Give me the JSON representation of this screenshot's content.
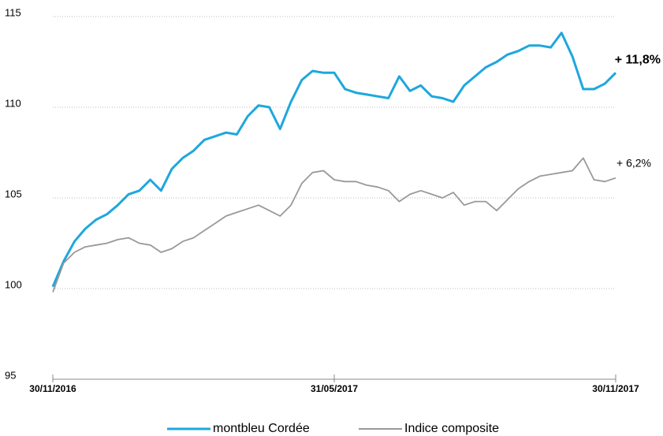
{
  "chart_data": {
    "type": "line",
    "categories": [
      "30/11/2016",
      null,
      null,
      null,
      null,
      null,
      null,
      null,
      null,
      null,
      null,
      null,
      null,
      null,
      null,
      null,
      null,
      null,
      null,
      null,
      null,
      null,
      null,
      null,
      null,
      null,
      "31/05/2017",
      null,
      null,
      null,
      null,
      null,
      null,
      null,
      null,
      null,
      null,
      null,
      null,
      null,
      null,
      null,
      null,
      null,
      null,
      null,
      null,
      null,
      null,
      null,
      null,
      null,
      "30/11/2017"
    ],
    "series": [
      {
        "name": "montbleu Cordée",
        "color": "#1ea7dd",
        "values": [
          100.1,
          101.5,
          102.6,
          103.3,
          103.8,
          104.1,
          104.6,
          105.2,
          105.4,
          106.0,
          105.4,
          106.6,
          107.2,
          107.6,
          108.2,
          108.4,
          108.6,
          108.5,
          109.5,
          110.1,
          110.0,
          108.8,
          110.3,
          111.5,
          112.0,
          111.9,
          111.9,
          111.0,
          110.8,
          110.7,
          110.6,
          110.5,
          111.7,
          110.9,
          111.2,
          110.6,
          110.5,
          110.3,
          111.2,
          111.7,
          112.2,
          112.5,
          112.9,
          113.1,
          113.4,
          113.4,
          113.3,
          114.1,
          112.8,
          111.0,
          111.0,
          111.3,
          111.9
        ]
      },
      {
        "name": "Indice composite",
        "color": "#999999",
        "values": [
          99.8,
          101.4,
          102.0,
          102.3,
          102.4,
          102.5,
          102.7,
          102.8,
          102.5,
          102.4,
          102.0,
          102.2,
          102.6,
          102.8,
          103.2,
          103.6,
          104.0,
          104.2,
          104.4,
          104.6,
          104.3,
          104.0,
          104.6,
          105.8,
          106.4,
          106.5,
          106.0,
          105.9,
          105.9,
          105.7,
          105.6,
          105.4,
          104.8,
          105.2,
          105.4,
          105.2,
          105.0,
          105.3,
          104.6,
          104.8,
          104.8,
          104.3,
          104.9,
          105.5,
          105.9,
          106.2,
          106.3,
          106.4,
          106.5,
          107.2,
          106.0,
          105.9,
          106.1
        ]
      }
    ],
    "annotations": [
      "+ 11,8%",
      "+ 6,2%"
    ],
    "ylim": [
      95,
      115
    ],
    "yticks": [
      95,
      100,
      105,
      110,
      115
    ],
    "grid": true
  }
}
